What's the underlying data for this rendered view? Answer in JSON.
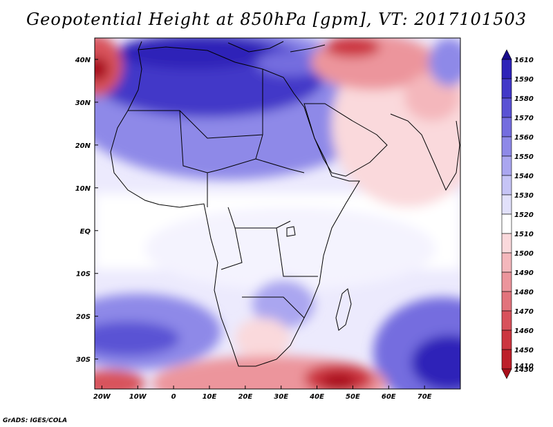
{
  "title": "Geopotential Height at 850hPa [gpm], VT: 2017101503",
  "credit": "GrADS: IGES/COLA",
  "map": {
    "variable": "Geopotential Height",
    "level": "850hPa",
    "units": "gpm",
    "valid_time": "2017101503",
    "lon_range": [
      -22,
      80
    ],
    "lat_range": [
      -37,
      45
    ],
    "x_ticks": [
      {
        "lon": -20,
        "label": "20W"
      },
      {
        "lon": -10,
        "label": "10W"
      },
      {
        "lon": 0,
        "label": "0"
      },
      {
        "lon": 10,
        "label": "10E"
      },
      {
        "lon": 20,
        "label": "20E"
      },
      {
        "lon": 30,
        "label": "30E"
      },
      {
        "lon": 40,
        "label": "40E"
      },
      {
        "lon": 50,
        "label": "50E"
      },
      {
        "lon": 60,
        "label": "60E"
      },
      {
        "lon": 70,
        "label": "70E"
      }
    ],
    "y_ticks": [
      {
        "lat": 40,
        "label": "40N"
      },
      {
        "lat": 30,
        "label": "30N"
      },
      {
        "lat": 20,
        "label": "20N"
      },
      {
        "lat": 10,
        "label": "10N"
      },
      {
        "lat": 0,
        "label": "EQ"
      },
      {
        "lat": -10,
        "label": "10S"
      },
      {
        "lat": -20,
        "label": "20S"
      },
      {
        "lat": -30,
        "label": "30S"
      }
    ]
  },
  "colorbar": {
    "levels": [
      {
        "label": "1610",
        "color": "#180c8c"
      },
      {
        "label": "1590",
        "color": "#2e23b8"
      },
      {
        "label": "1580",
        "color": "#4238c8"
      },
      {
        "label": "1570",
        "color": "#5a52d4"
      },
      {
        "label": "1560",
        "color": "#746ddf"
      },
      {
        "label": "1550",
        "color": "#8e89e8"
      },
      {
        "label": "1540",
        "color": "#aaa6f0"
      },
      {
        "label": "1530",
        "color": "#c6c4f6"
      },
      {
        "label": "1520",
        "color": "#e2e1fb"
      },
      {
        "label": "1510",
        "color": "#ffffff"
      },
      {
        "label": "1500",
        "color": "#fad9dc"
      },
      {
        "label": "1490",
        "color": "#f4b7bc"
      },
      {
        "label": "1480",
        "color": "#ec959c"
      },
      {
        "label": "1470",
        "color": "#e2737c"
      },
      {
        "label": "1460",
        "color": "#d8525c"
      },
      {
        "label": "1450",
        "color": "#cc3640"
      },
      {
        "label": "1430",
        "color": "#bd1f2a"
      },
      {
        "label": "1410",
        "color": "#a9101b"
      }
    ]
  },
  "field_features": [
    {
      "name": "north-africa-mediterranean-high",
      "lon": 5,
      "lat": 33,
      "value": 1590
    },
    {
      "name": "southern-indian-ocean-high",
      "lon": 76,
      "lat": -32,
      "value": 1610
    },
    {
      "name": "south-atlantic-high",
      "lon": -14,
      "lat": -24,
      "value": 1560
    },
    {
      "name": "arabian-india-low",
      "lon": 58,
      "lat": 22,
      "value": 1500
    },
    {
      "name": "southern-ocean-low-east",
      "lon": 46,
      "lat": -37,
      "value": 1430
    },
    {
      "name": "southern-ocean-low-west",
      "lon": -18,
      "lat": -37,
      "value": 1450
    },
    {
      "name": "atlantic-nw-corner-low",
      "lon": -22,
      "lat": 40,
      "value": 1430
    },
    {
      "name": "tropical-band",
      "lon": 10,
      "lat": 0,
      "value": 1515
    }
  ]
}
